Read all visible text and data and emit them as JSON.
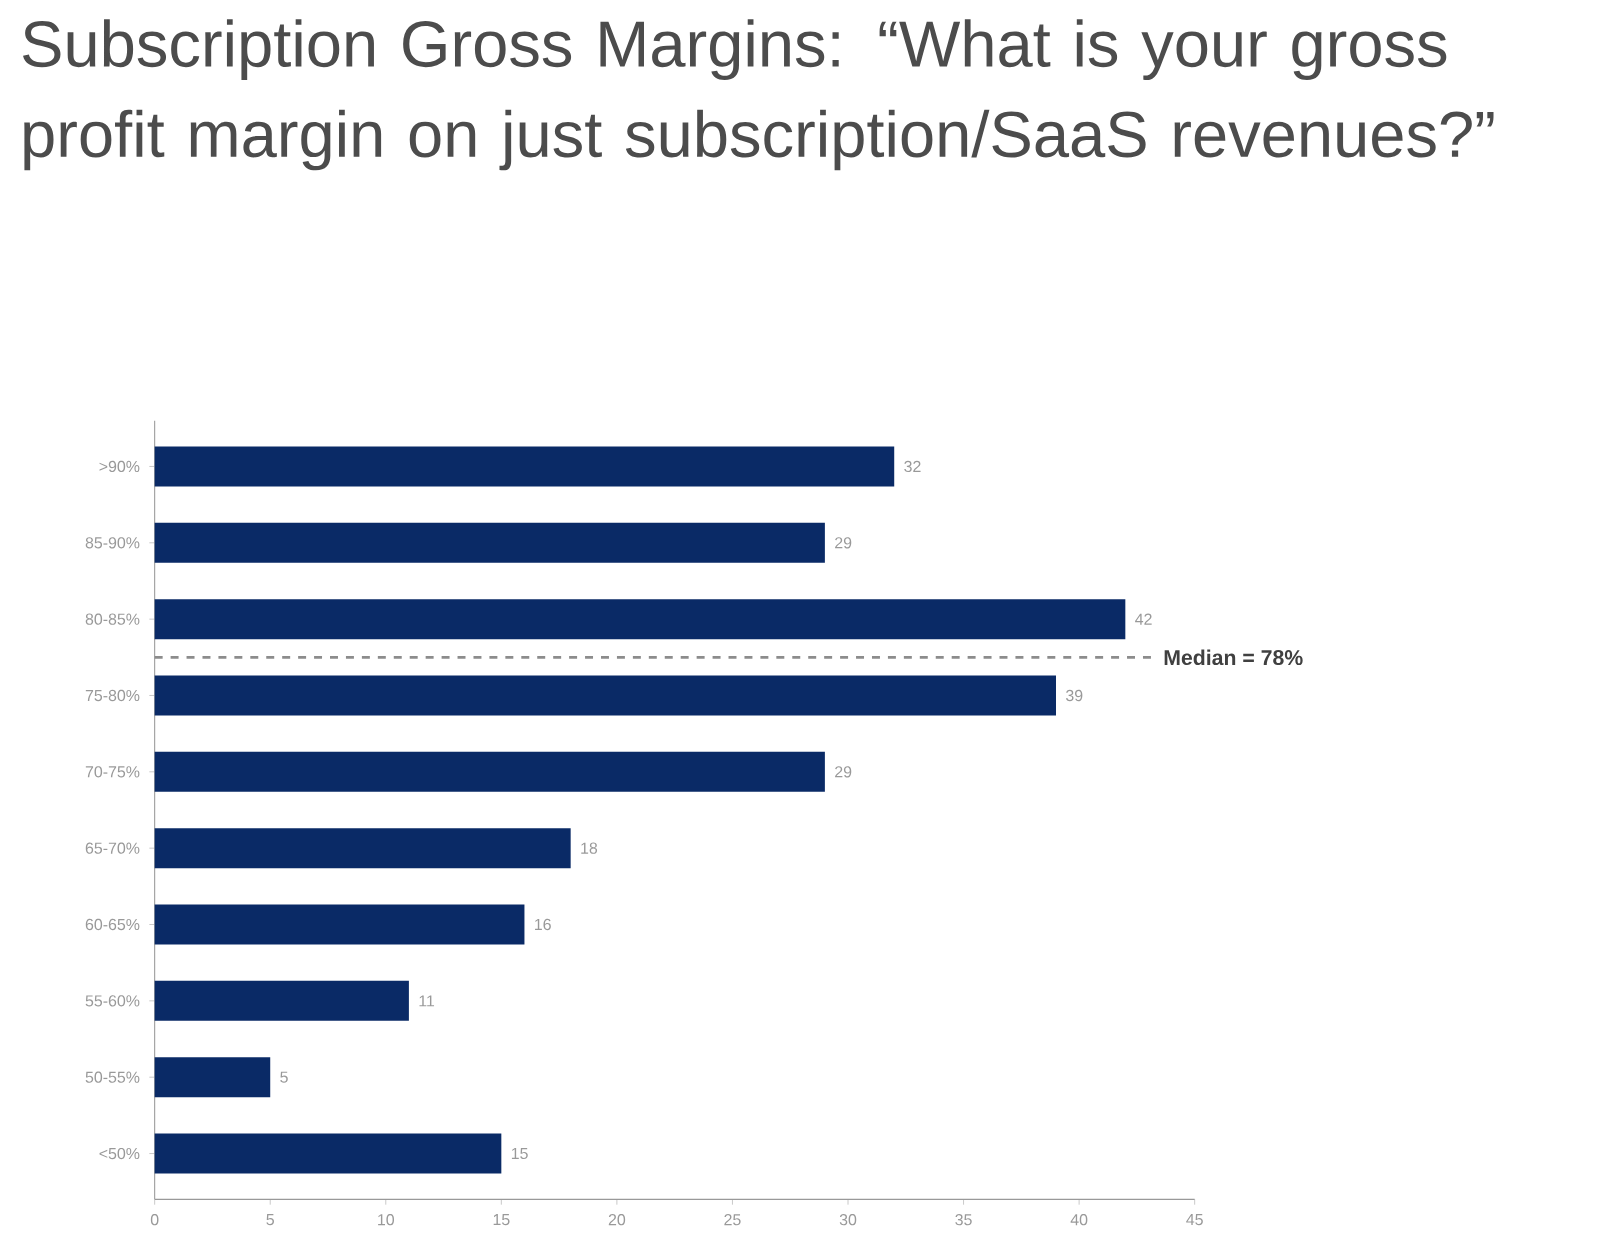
{
  "chart_data": {
    "type": "bar",
    "orientation": "horizontal",
    "title": "Subscription Gross Margins: “What is your gross profit margin on just subscription/SaaS revenues?”",
    "categories": [
      ">90%",
      "85-90%",
      "80-85%",
      "75-80%",
      "70-75%",
      "65-70%",
      "60-65%",
      "55-60%",
      "50-55%",
      "<50%"
    ],
    "values": [
      32,
      29,
      42,
      39,
      29,
      18,
      16,
      11,
      5,
      15
    ],
    "color": "#0a2a66",
    "xlim": [
      0,
      45
    ],
    "xticks": [
      0,
      5,
      10,
      15,
      20,
      25,
      30,
      35,
      40,
      45
    ],
    "grid": false,
    "data_labels": true,
    "annotations": [
      "Median = 78%"
    ]
  }
}
